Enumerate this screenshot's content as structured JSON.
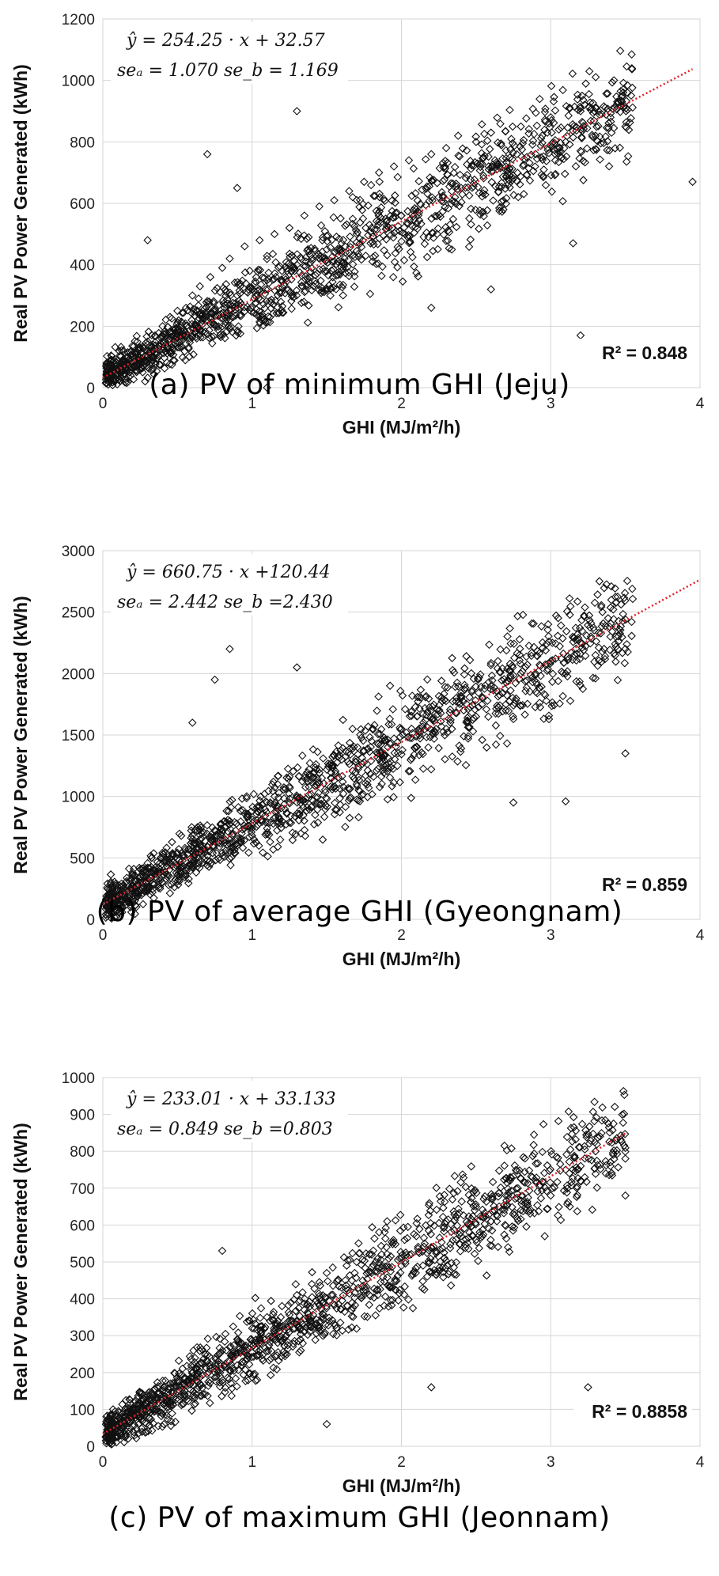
{
  "chart_data": [
    {
      "type": "scatter",
      "caption": "(a) PV of minimum GHI (Jeju)",
      "xlabel": "GHI (MJ/m²/h)",
      "ylabel": "Real PV Power Generated (kWh)",
      "xlim": [
        0,
        4
      ],
      "ylim": [
        0,
        1200
      ],
      "xticks": [
        0,
        1,
        2,
        3,
        4
      ],
      "yticks": [
        0,
        200,
        400,
        600,
        800,
        1000,
        1200
      ],
      "grid": true,
      "equation": "ŷ = 254.25 · x + 32.57",
      "se_a": "seₐ = 1.070",
      "se_b": "se_b = 1.169",
      "r2": "R² = 0.848",
      "fit": {
        "slope": 254.25,
        "intercept": 32.57,
        "x_range": [
          0,
          3.95
        ]
      },
      "points": [
        [
          0.02,
          15
        ],
        [
          0.05,
          40
        ],
        [
          0.08,
          20
        ],
        [
          0.1,
          60
        ],
        [
          0.12,
          35
        ],
        [
          0.15,
          80
        ],
        [
          0.18,
          50
        ],
        [
          0.2,
          110
        ],
        [
          0.22,
          70
        ],
        [
          0.25,
          130
        ],
        [
          0.28,
          90
        ],
        [
          0.3,
          150
        ],
        [
          0.33,
          100
        ],
        [
          0.35,
          170
        ],
        [
          0.38,
          120
        ],
        [
          0.4,
          200
        ],
        [
          0.42,
          140
        ],
        [
          0.45,
          230
        ],
        [
          0.48,
          160
        ],
        [
          0.5,
          250
        ],
        [
          0.55,
          180
        ],
        [
          0.6,
          300
        ],
        [
          0.62,
          200
        ],
        [
          0.65,
          330
        ],
        [
          0.7,
          220
        ],
        [
          0.72,
          360
        ],
        [
          0.75,
          250
        ],
        [
          0.8,
          390
        ],
        [
          0.82,
          270
        ],
        [
          0.85,
          420
        ],
        [
          0.9,
          300
        ],
        [
          0.95,
          460
        ],
        [
          1.0,
          320
        ],
        [
          1.05,
          480
        ],
        [
          1.1,
          350
        ],
        [
          1.15,
          500
        ],
        [
          1.2,
          380
        ],
        [
          1.25,
          520
        ],
        [
          1.3,
          400
        ],
        [
          1.35,
          560
        ],
        [
          1.4,
          420
        ],
        [
          1.45,
          590
        ],
        [
          1.5,
          450
        ],
        [
          1.55,
          610
        ],
        [
          1.6,
          470
        ],
        [
          1.65,
          640
        ],
        [
          1.7,
          500
        ],
        [
          1.75,
          670
        ],
        [
          1.8,
          520
        ],
        [
          1.85,
          700
        ],
        [
          1.9,
          540
        ],
        [
          1.95,
          720
        ],
        [
          2.0,
          560
        ],
        [
          2.05,
          740
        ],
        [
          2.1,
          580
        ],
        [
          2.2,
          760
        ],
        [
          2.25,
          620
        ],
        [
          2.3,
          780
        ],
        [
          2.4,
          650
        ],
        [
          2.5,
          800
        ],
        [
          2.55,
          690
        ],
        [
          2.6,
          830
        ],
        [
          2.7,
          720
        ],
        [
          2.8,
          850
        ],
        [
          2.9,
          760
        ],
        [
          3.0,
          880
        ],
        [
          3.1,
          800
        ],
        [
          3.2,
          900
        ],
        [
          3.3,
          820
        ],
        [
          3.4,
          880
        ],
        [
          3.5,
          850
        ],
        [
          3.95,
          670
        ],
        [
          0.7,
          760
        ],
        [
          1.1,
          0
        ],
        [
          3.2,
          170
        ],
        [
          3.15,
          470
        ],
        [
          0.3,
          480
        ],
        [
          0.9,
          650
        ],
        [
          1.3,
          900
        ],
        [
          2.2,
          260
        ],
        [
          2.6,
          320
        ]
      ],
      "top": 0,
      "caption_top": 466
    },
    {
      "type": "scatter",
      "caption": "(b) PV of average GHI (Gyeongnam)",
      "xlabel": "GHI (MJ/m²/h)",
      "ylabel": "Real PV Power Generated (kWh)",
      "xlim": [
        0,
        4
      ],
      "ylim": [
        0,
        3000
      ],
      "xticks": [
        0,
        1,
        2,
        3,
        4
      ],
      "yticks": [
        0,
        500,
        1000,
        1500,
        2000,
        2500,
        3000
      ],
      "grid": true,
      "equation": "ŷ = 660.75 · x +120.44",
      "se_a": "seₐ = 2.442",
      "se_b": "se_b =2.430",
      "r2": "R² = 0.859",
      "fit": {
        "slope": 660.75,
        "intercept": 120.44,
        "x_range": [
          0,
          4.0
        ]
      },
      "points": [
        [
          0.02,
          40
        ],
        [
          0.05,
          100
        ],
        [
          0.08,
          60
        ],
        [
          0.1,
          180
        ],
        [
          0.12,
          90
        ],
        [
          0.15,
          230
        ],
        [
          0.18,
          140
        ],
        [
          0.2,
          300
        ],
        [
          0.22,
          180
        ],
        [
          0.25,
          350
        ],
        [
          0.3,
          240
        ],
        [
          0.35,
          420
        ],
        [
          0.4,
          300
        ],
        [
          0.45,
          500
        ],
        [
          0.5,
          360
        ],
        [
          0.55,
          580
        ],
        [
          0.6,
          420
        ],
        [
          0.65,
          650
        ],
        [
          0.7,
          480
        ],
        [
          0.75,
          720
        ],
        [
          0.8,
          540
        ],
        [
          0.85,
          800
        ],
        [
          0.9,
          600
        ],
        [
          0.95,
          860
        ],
        [
          1.0,
          680
        ],
        [
          1.05,
          920
        ],
        [
          1.1,
          740
        ],
        [
          1.15,
          1000
        ],
        [
          1.2,
          800
        ],
        [
          1.25,
          1080
        ],
        [
          1.3,
          860
        ],
        [
          1.35,
          1150
        ],
        [
          1.4,
          920
        ],
        [
          1.45,
          1220
        ],
        [
          1.5,
          980
        ],
        [
          1.6,
          1300
        ],
        [
          1.7,
          1100
        ],
        [
          1.8,
          1450
        ],
        [
          1.9,
          1250
        ],
        [
          2.0,
          1550
        ],
        [
          2.1,
          1400
        ],
        [
          2.2,
          1700
        ],
        [
          2.3,
          1550
        ],
        [
          2.4,
          1800
        ],
        [
          2.5,
          1650
        ],
        [
          2.6,
          1900
        ],
        [
          2.7,
          1750
        ],
        [
          2.8,
          2000
        ],
        [
          2.9,
          1850
        ],
        [
          3.0,
          2100
        ],
        [
          3.1,
          2000
        ],
        [
          3.2,
          2250
        ],
        [
          3.3,
          2150
        ],
        [
          3.4,
          2300
        ],
        [
          3.5,
          2200
        ],
        [
          0.85,
          2200
        ],
        [
          0.75,
          1950
        ],
        [
          1.3,
          2050
        ],
        [
          3.5,
          1350
        ],
        [
          3.1,
          960
        ],
        [
          2.75,
          950
        ],
        [
          0.6,
          1600
        ]
      ],
      "top": 672,
      "caption_top": 1132
    },
    {
      "type": "scatter",
      "caption": "(c) PV of maximum GHI (Jeonnam)",
      "xlabel": "GHI (MJ/m²/h)",
      "ylabel": "Real PV Power Generated (kWh)",
      "xlim": [
        0,
        4
      ],
      "ylim": [
        0,
        1000
      ],
      "xticks": [
        0,
        1,
        2,
        3,
        4
      ],
      "yticks": [
        0,
        100,
        200,
        300,
        400,
        500,
        600,
        700,
        800,
        900,
        1000
      ],
      "grid": true,
      "equation": "ŷ = 233.01 · x + 33.133",
      "se_a": "seₐ = 0.849",
      "se_b": "se_b =0.803",
      "r2": "R² = 0.8858",
      "fit": {
        "slope": 233.01,
        "intercept": 33.133,
        "x_range": [
          0,
          3.5
        ]
      },
      "points": [
        [
          0.02,
          15
        ],
        [
          0.05,
          40
        ],
        [
          0.08,
          25
        ],
        [
          0.1,
          60
        ],
        [
          0.12,
          35
        ],
        [
          0.15,
          80
        ],
        [
          0.18,
          50
        ],
        [
          0.2,
          100
        ],
        [
          0.25,
          80
        ],
        [
          0.3,
          120
        ],
        [
          0.35,
          100
        ],
        [
          0.4,
          150
        ],
        [
          0.45,
          120
        ],
        [
          0.5,
          180
        ],
        [
          0.55,
          150
        ],
        [
          0.6,
          200
        ],
        [
          0.65,
          170
        ],
        [
          0.7,
          230
        ],
        [
          0.75,
          200
        ],
        [
          0.8,
          260
        ],
        [
          0.85,
          230
        ],
        [
          0.9,
          290
        ],
        [
          0.95,
          260
        ],
        [
          1.0,
          320
        ],
        [
          1.05,
          290
        ],
        [
          1.1,
          350
        ],
        [
          1.15,
          310
        ],
        [
          1.2,
          380
        ],
        [
          1.25,
          340
        ],
        [
          1.3,
          410
        ],
        [
          1.35,
          370
        ],
        [
          1.4,
          440
        ],
        [
          1.45,
          400
        ],
        [
          1.5,
          470
        ],
        [
          1.6,
          430
        ],
        [
          1.7,
          500
        ],
        [
          1.8,
          470
        ],
        [
          1.9,
          540
        ],
        [
          2.0,
          510
        ],
        [
          2.1,
          570
        ],
        [
          2.2,
          540
        ],
        [
          2.3,
          610
        ],
        [
          2.4,
          570
        ],
        [
          2.5,
          650
        ],
        [
          2.6,
          610
        ],
        [
          2.7,
          680
        ],
        [
          2.8,
          640
        ],
        [
          2.9,
          720
        ],
        [
          3.0,
          680
        ],
        [
          3.1,
          750
        ],
        [
          3.2,
          720
        ],
        [
          3.3,
          800
        ],
        [
          3.4,
          760
        ],
        [
          3.5,
          780
        ],
        [
          0.8,
          530
        ],
        [
          1.5,
          60
        ],
        [
          2.2,
          160
        ],
        [
          3.25,
          160
        ],
        [
          3.5,
          680
        ]
      ],
      "top": 1338,
      "caption_top": 1898
    }
  ]
}
